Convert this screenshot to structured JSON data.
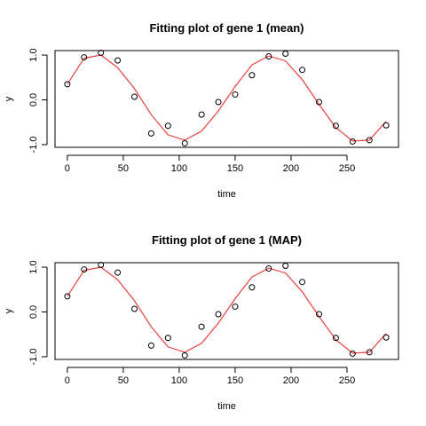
{
  "chart_data": [
    {
      "type": "scatter",
      "title": "Fitting plot of gene 1 (mean)",
      "xlabel": "time",
      "ylabel": "y",
      "xticks": [
        "0",
        "50",
        "100",
        "150",
        "200",
        "250"
      ],
      "yticks": [
        "-1.0",
        "0.0",
        "1.0"
      ],
      "xlim": [
        -11,
        296
      ],
      "ylim": [
        -1.06,
        1.1
      ],
      "grid": false,
      "series": [
        {
          "kind": "points",
          "marker": "open-circle",
          "color": "#000000",
          "x": [
            0,
            15,
            30,
            45,
            60,
            75,
            90,
            105,
            120,
            135,
            150,
            165,
            180,
            195,
            210,
            225,
            240,
            255,
            270,
            285
          ],
          "y": [
            0.35,
            0.95,
            1.05,
            0.88,
            0.07,
            -0.75,
            -0.58,
            -0.97,
            -0.33,
            -0.05,
            0.12,
            0.55,
            0.97,
            1.03,
            0.67,
            -0.05,
            -0.58,
            -0.93,
            -0.9,
            -0.57
          ]
        },
        {
          "kind": "line",
          "color": "#e8423f",
          "x": [
            0,
            15,
            30,
            45,
            60,
            75,
            90,
            105,
            120,
            135,
            150,
            165,
            180,
            195,
            210,
            225,
            240,
            255,
            270,
            285
          ],
          "y": [
            0.35,
            0.93,
            1.0,
            0.72,
            0.25,
            -0.33,
            -0.78,
            -0.9,
            -0.7,
            -0.25,
            0.3,
            0.78,
            0.98,
            0.87,
            0.45,
            -0.1,
            -0.62,
            -0.92,
            -0.9,
            -0.48
          ]
        }
      ]
    },
    {
      "type": "scatter",
      "title": "Fitting plot of gene 1 (MAP)",
      "xlabel": "time",
      "ylabel": "y",
      "xticks": [
        "0",
        "50",
        "100",
        "150",
        "200",
        "250"
      ],
      "yticks": [
        "-1.0",
        "0.0",
        "1.0"
      ],
      "xlim": [
        -11,
        296
      ],
      "ylim": [
        -1.06,
        1.1
      ],
      "grid": false,
      "series": [
        {
          "kind": "points",
          "marker": "open-circle",
          "color": "#000000",
          "x": [
            0,
            15,
            30,
            45,
            60,
            75,
            90,
            105,
            120,
            135,
            150,
            165,
            180,
            195,
            210,
            225,
            240,
            255,
            270,
            285
          ],
          "y": [
            0.35,
            0.95,
            1.05,
            0.88,
            0.07,
            -0.75,
            -0.58,
            -0.97,
            -0.33,
            -0.05,
            0.12,
            0.55,
            0.97,
            1.03,
            0.67,
            -0.05,
            -0.58,
            -0.93,
            -0.9,
            -0.57
          ]
        },
        {
          "kind": "line",
          "color": "#e8423f",
          "x": [
            0,
            15,
            30,
            45,
            60,
            75,
            90,
            105,
            120,
            135,
            150,
            165,
            180,
            195,
            210,
            225,
            240,
            255,
            270,
            285
          ],
          "y": [
            0.35,
            0.93,
            1.0,
            0.72,
            0.25,
            -0.33,
            -0.78,
            -0.9,
            -0.7,
            -0.25,
            0.3,
            0.78,
            0.98,
            0.87,
            0.45,
            -0.1,
            -0.62,
            -0.92,
            -0.9,
            -0.48
          ]
        }
      ]
    }
  ]
}
